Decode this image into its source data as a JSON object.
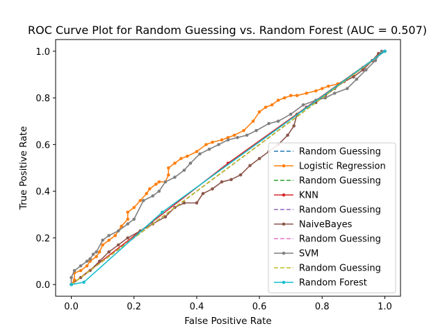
{
  "chart_data": {
    "type": "line",
    "title": "ROC Curve Plot for Random Guessing vs. Random Forest (AUC = 0.507)",
    "xlabel": "False Positive Rate",
    "ylabel": "True Positive Rate",
    "xlim": [
      -0.05,
      1.05
    ],
    "ylim": [
      -0.05,
      1.05
    ],
    "xticks": [
      0.0,
      0.2,
      0.4,
      0.6,
      0.8,
      1.0
    ],
    "yticks": [
      0.0,
      0.2,
      0.4,
      0.6,
      0.8,
      1.0
    ],
    "tick_labels": [
      "0.0",
      "0.2",
      "0.4",
      "0.6",
      "0.8",
      "1.0"
    ],
    "grid": false,
    "legend_position": "lower right",
    "series": [
      {
        "name": "Random Guessing",
        "color": "#1f77b4",
        "style": "dashed",
        "marker": false,
        "x": [
          0,
          1
        ],
        "y": [
          0,
          1
        ]
      },
      {
        "name": "Logistic Regression",
        "color": "#ff7f0e",
        "style": "solid",
        "marker": true,
        "x": [
          0,
          0.01,
          0.01,
          0.03,
          0.05,
          0.06,
          0.08,
          0.09,
          0.1,
          0.12,
          0.14,
          0.16,
          0.18,
          0.18,
          0.2,
          0.22,
          0.24,
          0.25,
          0.27,
          0.28,
          0.3,
          0.31,
          0.31,
          0.33,
          0.35,
          0.37,
          0.4,
          0.43,
          0.45,
          0.48,
          0.5,
          0.52,
          0.55,
          0.58,
          0.6,
          0.62,
          0.64,
          0.66,
          0.68,
          0.7,
          0.72,
          0.75,
          0.78,
          0.8,
          0.82,
          0.85,
          0.88,
          0.9,
          0.93,
          0.96,
          0.98,
          1.0
        ],
        "y": [
          0,
          0.02,
          0.05,
          0.06,
          0.08,
          0.1,
          0.12,
          0.14,
          0.17,
          0.19,
          0.21,
          0.25,
          0.28,
          0.31,
          0.33,
          0.36,
          0.39,
          0.41,
          0.43,
          0.44,
          0.44,
          0.47,
          0.5,
          0.52,
          0.54,
          0.55,
          0.57,
          0.6,
          0.61,
          0.62,
          0.63,
          0.64,
          0.66,
          0.7,
          0.74,
          0.76,
          0.77,
          0.79,
          0.8,
          0.81,
          0.81,
          0.82,
          0.83,
          0.84,
          0.85,
          0.86,
          0.88,
          0.9,
          0.93,
          0.96,
          0.99,
          1.0
        ]
      },
      {
        "name": "Random Guessing",
        "color": "#2ca02c",
        "style": "dashed",
        "marker": false,
        "x": [
          0,
          1
        ],
        "y": [
          0,
          1
        ]
      },
      {
        "name": "KNN",
        "color": "#d62728",
        "style": "solid",
        "marker": true,
        "x": [
          0,
          0.5,
          1.0
        ],
        "y": [
          0,
          0.52,
          1.0
        ]
      },
      {
        "name": "Random Guessing",
        "color": "#9467bd",
        "style": "dashed",
        "marker": false,
        "x": [
          0,
          1
        ],
        "y": [
          0,
          1
        ]
      },
      {
        "name": "NaiveBayes",
        "color": "#8c564b",
        "style": "solid",
        "marker": true,
        "x": [
          0,
          0.03,
          0.06,
          0.09,
          0.12,
          0.15,
          0.18,
          0.22,
          0.26,
          0.3,
          0.33,
          0.36,
          0.4,
          0.42,
          0.45,
          0.48,
          0.51,
          0.54,
          0.57,
          0.6,
          0.63,
          0.66,
          0.69,
          0.71,
          0.72,
          0.75,
          0.78,
          0.81,
          0.84,
          0.87,
          0.9,
          0.93,
          0.96,
          0.98,
          1.0
        ],
        "y": [
          0,
          0.03,
          0.06,
          0.1,
          0.14,
          0.17,
          0.2,
          0.23,
          0.26,
          0.29,
          0.33,
          0.35,
          0.35,
          0.39,
          0.41,
          0.44,
          0.45,
          0.47,
          0.51,
          0.54,
          0.57,
          0.6,
          0.64,
          0.68,
          0.73,
          0.76,
          0.78,
          0.81,
          0.84,
          0.87,
          0.89,
          0.92,
          0.96,
          0.99,
          1.0
        ]
      },
      {
        "name": "Random Guessing",
        "color": "#e377c2",
        "style": "dashed",
        "marker": false,
        "x": [
          0,
          1
        ],
        "y": [
          0,
          1
        ]
      },
      {
        "name": "SVM",
        "color": "#7f7f7f",
        "style": "solid",
        "marker": true,
        "x": [
          0,
          0.0,
          0.01,
          0.03,
          0.05,
          0.06,
          0.07,
          0.08,
          0.1,
          0.12,
          0.15,
          0.18,
          0.2,
          0.23,
          0.26,
          0.28,
          0.3,
          0.33,
          0.36,
          0.38,
          0.41,
          0.44,
          0.47,
          0.5,
          0.53,
          0.56,
          0.59,
          0.63,
          0.66,
          0.7,
          0.74,
          0.78,
          0.81,
          0.84,
          0.88,
          0.91,
          0.94,
          0.97,
          0.99,
          1.0
        ],
        "y": [
          0,
          0.03,
          0.06,
          0.08,
          0.1,
          0.11,
          0.13,
          0.14,
          0.19,
          0.21,
          0.23,
          0.26,
          0.28,
          0.36,
          0.38,
          0.4,
          0.44,
          0.46,
          0.49,
          0.52,
          0.56,
          0.58,
          0.6,
          0.62,
          0.63,
          0.64,
          0.66,
          0.69,
          0.7,
          0.73,
          0.77,
          0.79,
          0.8,
          0.82,
          0.84,
          0.88,
          0.92,
          0.96,
          1.0,
          1.0
        ]
      },
      {
        "name": "Random Guessing",
        "color": "#bcbd22",
        "style": "dashed",
        "marker": false,
        "x": [
          0,
          1
        ],
        "y": [
          0,
          1
        ]
      },
      {
        "name": "Random Forest",
        "color": "#17becf",
        "style": "solid",
        "marker": true,
        "x": [
          0,
          0.04,
          0.29,
          1.0
        ],
        "y": [
          0,
          0.01,
          0.31,
          1.0
        ]
      }
    ]
  }
}
